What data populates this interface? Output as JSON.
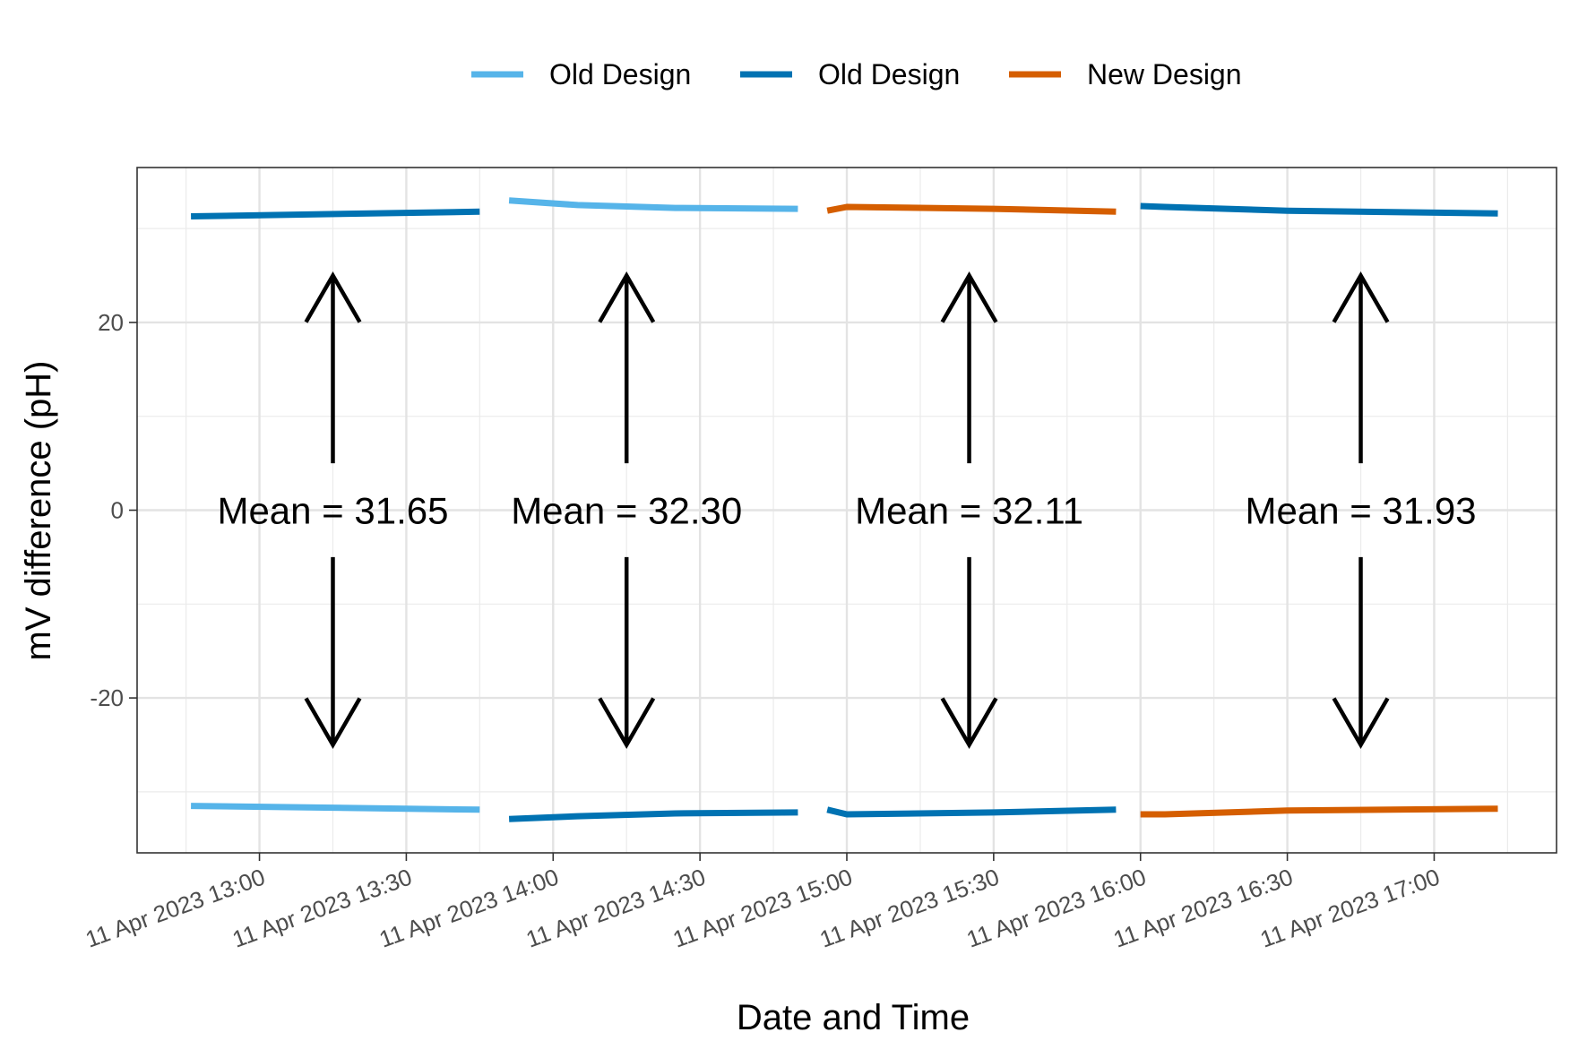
{
  "chart_data": {
    "type": "line",
    "title": "",
    "xlabel": "Date and Time",
    "ylabel": "mV difference (pH)",
    "x_tick_labels": [
      "11 Apr 2023 13:00",
      "11 Apr 2023 13:30",
      "11 Apr 2023 14:00",
      "11 Apr 2023 14:30",
      "11 Apr 2023 15:00",
      "11 Apr 2023 15:30",
      "11 Apr 2023 16:00",
      "11 Apr 2023 16:30",
      "11 Apr 2023 17:00"
    ],
    "y_ticks": [
      -20,
      0,
      20
    ],
    "xlim": [
      "2023-04-11 12:35",
      "2023-04-11 17:25"
    ],
    "ylim": [
      -36.5,
      36.5
    ],
    "grid": true,
    "legend_position": "top",
    "colors": {
      "old_light": "#56B4E9",
      "old_dark": "#0072B2",
      "new": "#D55E00",
      "annotation": "#000000"
    },
    "series": [
      {
        "name": "Old Design",
        "color": "#0072B2",
        "x": [
          "2023-04-11 12:46",
          "2023-04-11 13:45"
        ],
        "y": [
          31.3,
          31.8
        ]
      },
      {
        "name": "Old Design",
        "color": "#56B4E9",
        "x": [
          "2023-04-11 12:46",
          "2023-04-11 13:45"
        ],
        "y": [
          -31.5,
          -31.9
        ]
      },
      {
        "name": "Old Design",
        "color": "#56B4E9",
        "x": [
          "2023-04-11 13:51",
          "2023-04-11 14:05",
          "2023-04-11 14:25",
          "2023-04-11 14:50"
        ],
        "y": [
          33.0,
          32.5,
          32.2,
          32.1
        ]
      },
      {
        "name": "Old Design",
        "color": "#0072B2",
        "x": [
          "2023-04-11 13:51",
          "2023-04-11 14:05",
          "2023-04-11 14:25",
          "2023-04-11 14:50"
        ],
        "y": [
          -32.9,
          -32.6,
          -32.3,
          -32.2
        ]
      },
      {
        "name": "New Design",
        "color": "#D55E00",
        "x": [
          "2023-04-11 14:56",
          "2023-04-11 15:00",
          "2023-04-11 15:30",
          "2023-04-11 15:55"
        ],
        "y": [
          31.9,
          32.3,
          32.1,
          31.8
        ]
      },
      {
        "name": "Old Design",
        "color": "#0072B2",
        "x": [
          "2023-04-11 14:56",
          "2023-04-11 15:00",
          "2023-04-11 15:30",
          "2023-04-11 15:55"
        ],
        "y": [
          -31.9,
          -32.4,
          -32.2,
          -31.9
        ]
      },
      {
        "name": "Old Design",
        "color": "#0072B2",
        "x": [
          "2023-04-11 16:00",
          "2023-04-11 16:05",
          "2023-04-11 16:30",
          "2023-04-11 17:13"
        ],
        "y": [
          32.4,
          32.3,
          31.9,
          31.6
        ]
      },
      {
        "name": "New Design",
        "color": "#D55E00",
        "x": [
          "2023-04-11 16:00",
          "2023-04-11 16:05",
          "2023-04-11 16:30",
          "2023-04-11 17:13"
        ],
        "y": [
          -32.4,
          -32.4,
          -32.0,
          -31.8
        ]
      }
    ],
    "legend": [
      {
        "label": "Old Design",
        "color": "#56B4E9"
      },
      {
        "label": "Old Design",
        "color": "#0072B2"
      },
      {
        "label": "New Design",
        "color": "#D55E00"
      }
    ],
    "annotations": [
      {
        "text": "Mean = 31.65",
        "x": "2023-04-11 13:15",
        "y": 0
      },
      {
        "text": "Mean = 32.30",
        "x": "2023-04-11 14:15",
        "y": 0
      },
      {
        "text": "Mean = 32.11",
        "x": "2023-04-11 15:25",
        "y": 0
      },
      {
        "text": "Mean = 31.93",
        "x": "2023-04-11 16:45",
        "y": 0
      }
    ],
    "arrows": [
      {
        "x": "2023-04-11 13:15",
        "from_y": 5,
        "to_y": 25
      },
      {
        "x": "2023-04-11 13:15",
        "from_y": -5,
        "to_y": -25
      },
      {
        "x": "2023-04-11 14:15",
        "from_y": 5,
        "to_y": 25
      },
      {
        "x": "2023-04-11 14:15",
        "from_y": -5,
        "to_y": -25
      },
      {
        "x": "2023-04-11 15:25",
        "from_y": 5,
        "to_y": 25
      },
      {
        "x": "2023-04-11 15:25",
        "from_y": -5,
        "to_y": -25
      },
      {
        "x": "2023-04-11 16:45",
        "from_y": 5,
        "to_y": 25
      },
      {
        "x": "2023-04-11 16:45",
        "from_y": -5,
        "to_y": -25
      }
    ]
  }
}
